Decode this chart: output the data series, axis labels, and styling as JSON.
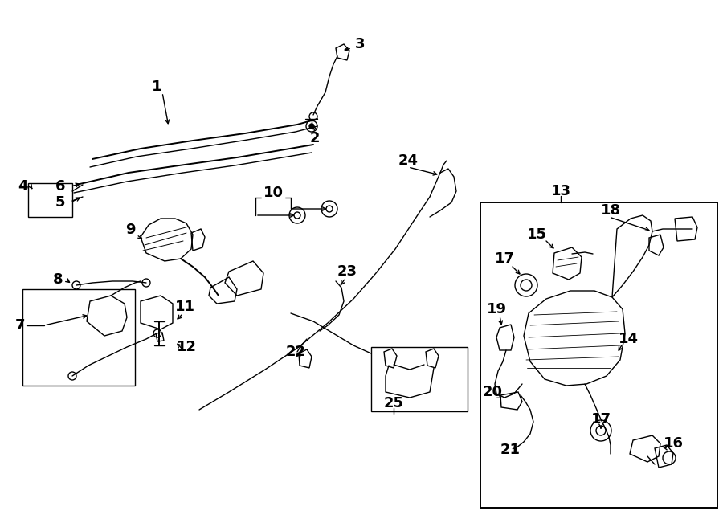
{
  "bg_color": "#ffffff",
  "lc": "#000000",
  "fig_w": 9.0,
  "fig_h": 6.61,
  "dpi": 100,
  "fs": 13
}
